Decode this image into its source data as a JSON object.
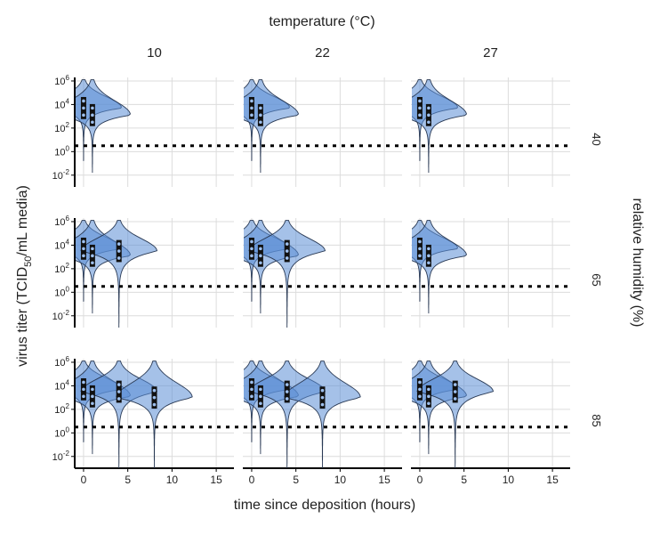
{
  "chart_data": {
    "type": "violin",
    "facet_col_title": "temperature (°C)",
    "facet_row_title": "relative humidity (%)",
    "temperatures": [
      "10",
      "22",
      "27"
    ],
    "humidities": [
      "40",
      "65",
      "85"
    ],
    "xlabel": "time since deposition (hours)",
    "ylabel": {
      "pre": "virus titer (TCID",
      "sub": "50",
      "post": "/mL media)"
    },
    "xlim": [
      -1,
      17
    ],
    "xticks": [
      0,
      5,
      10,
      15
    ],
    "ylim_log10": [
      -3,
      6.3
    ],
    "yticks": [
      {
        "exp": 6,
        "label_base": "10",
        "label_exp": "6"
      },
      {
        "exp": 4,
        "label_base": "10",
        "label_exp": "4"
      },
      {
        "exp": 2,
        "label_base": "10",
        "label_exp": "2"
      },
      {
        "exp": 0,
        "label_base": "10",
        "label_exp": "0"
      },
      {
        "exp": -2,
        "label_base": "10",
        "label_exp": "-2"
      }
    ],
    "detection_limit_log10": 0.5,
    "grid": true,
    "colors": {
      "violin_fill": "#5b8ed6",
      "box": "#111111",
      "dashed_line": "#000000",
      "grid": "#dcdcdc"
    },
    "panels": [
      {
        "row": 0,
        "col": 0,
        "times": [
          0,
          1
        ]
      },
      {
        "row": 0,
        "col": 1,
        "times": [
          0,
          1
        ]
      },
      {
        "row": 0,
        "col": 2,
        "times": [
          0,
          1
        ]
      },
      {
        "row": 1,
        "col": 0,
        "times": [
          0,
          1,
          4
        ]
      },
      {
        "row": 1,
        "col": 1,
        "times": [
          0,
          1,
          4
        ]
      },
      {
        "row": 1,
        "col": 2,
        "times": [
          0,
          1
        ]
      },
      {
        "row": 2,
        "col": 0,
        "times": [
          0,
          1,
          4,
          8
        ]
      },
      {
        "row": 2,
        "col": 1,
        "times": [
          0,
          1,
          4,
          8
        ]
      },
      {
        "row": 2,
        "col": 2,
        "times": [
          0,
          1,
          4
        ]
      }
    ]
  }
}
